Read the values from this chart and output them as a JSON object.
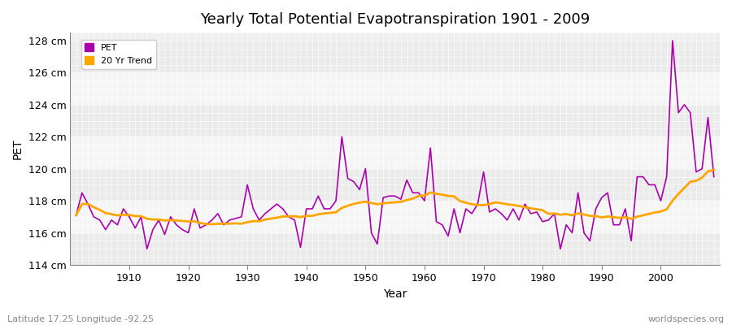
{
  "title": "Yearly Total Potential Evapotranspiration 1901 - 2009",
  "xlabel": "Year",
  "ylabel": "PET",
  "footer_left": "Latitude 17.25 Longitude -92.25",
  "footer_right": "worldspecies.org",
  "pet_color": "#AA00AA",
  "trend_color": "#FFA500",
  "background_color": "#FFFFFF",
  "plot_bg_color": "#EFEFEF",
  "band_color_1": "#EBEBEB",
  "band_color_2": "#F5F5F5",
  "ylim": [
    114,
    128.5
  ],
  "yticks": [
    114,
    116,
    118,
    120,
    122,
    124,
    126,
    128
  ],
  "ytick_labels": [
    "114 cm",
    "116 cm",
    "118 cm",
    "120 cm",
    "122 cm",
    "124 cm",
    "126 cm",
    "128 cm"
  ],
  "years": [
    1901,
    1902,
    1903,
    1904,
    1905,
    1906,
    1907,
    1908,
    1909,
    1910,
    1911,
    1912,
    1913,
    1914,
    1915,
    1916,
    1917,
    1918,
    1919,
    1920,
    1921,
    1922,
    1923,
    1924,
    1925,
    1926,
    1927,
    1928,
    1929,
    1930,
    1931,
    1932,
    1933,
    1934,
    1935,
    1936,
    1937,
    1938,
    1939,
    1940,
    1941,
    1942,
    1943,
    1944,
    1945,
    1946,
    1947,
    1948,
    1949,
    1950,
    1951,
    1952,
    1953,
    1954,
    1955,
    1956,
    1957,
    1958,
    1959,
    1960,
    1961,
    1962,
    1963,
    1964,
    1965,
    1966,
    1967,
    1968,
    1969,
    1970,
    1971,
    1972,
    1973,
    1974,
    1975,
    1976,
    1977,
    1978,
    1979,
    1980,
    1981,
    1982,
    1983,
    1984,
    1985,
    1986,
    1987,
    1988,
    1989,
    1990,
    1991,
    1992,
    1993,
    1994,
    1995,
    1996,
    1997,
    1998,
    1999,
    2000,
    2001,
    2002,
    2003,
    2004,
    2005,
    2006,
    2007,
    2008,
    2009
  ],
  "pet_values": [
    117.1,
    118.5,
    117.8,
    117.0,
    116.8,
    116.2,
    116.8,
    116.5,
    117.5,
    117.0,
    116.3,
    117.0,
    115.0,
    116.2,
    116.8,
    115.9,
    117.0,
    116.5,
    116.2,
    116.0,
    117.5,
    116.3,
    116.5,
    116.8,
    117.2,
    116.5,
    116.8,
    116.9,
    117.0,
    119.0,
    117.5,
    116.8,
    117.2,
    117.5,
    117.8,
    117.5,
    117.0,
    116.8,
    115.1,
    117.5,
    117.5,
    118.3,
    117.5,
    117.5,
    118.0,
    122.0,
    119.4,
    119.2,
    118.7,
    120.0,
    116.0,
    115.3,
    118.2,
    118.3,
    118.3,
    118.1,
    119.3,
    118.5,
    118.5,
    118.0,
    121.3,
    116.7,
    116.5,
    115.8,
    117.5,
    116.0,
    117.5,
    117.2,
    117.8,
    119.8,
    117.3,
    117.5,
    117.2,
    116.8,
    117.5,
    116.8,
    117.8,
    117.2,
    117.3,
    116.7,
    116.8,
    117.2,
    115.0,
    116.5,
    116.0,
    118.5,
    116.0,
    115.5,
    117.5,
    118.2,
    118.5,
    116.5,
    116.5,
    117.5,
    115.5,
    119.5,
    119.5,
    119.0,
    119.0,
    118.0,
    119.5,
    128.0,
    123.5,
    124.0,
    123.5,
    119.8,
    120.0,
    123.2,
    119.5
  ]
}
